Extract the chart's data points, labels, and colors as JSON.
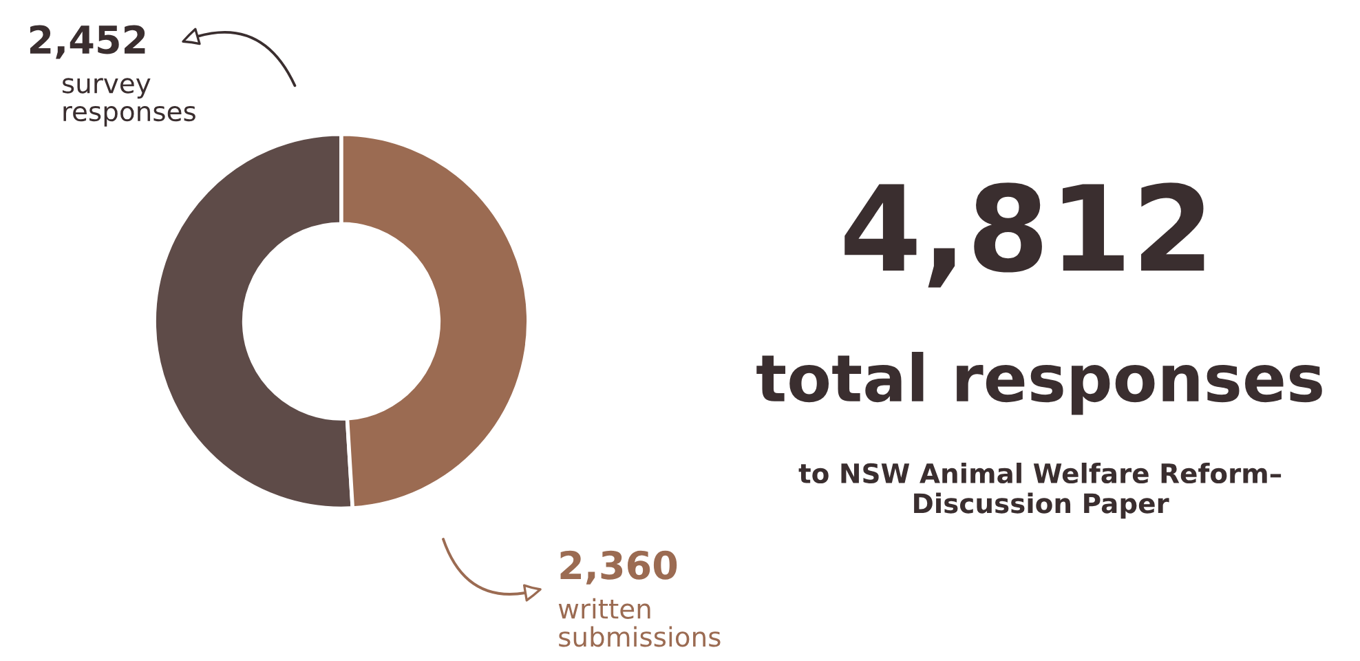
{
  "chart_data": {
    "type": "donut",
    "title": "4,812",
    "subtitle": "total responses",
    "annotations": [
      "to NSW Animal Welfare Reform–\nDiscussion Paper"
    ],
    "categories": [
      "survey responses",
      "written submissions"
    ],
    "values": [
      2452,
      2360
    ],
    "colors": [
      "#5e4b48",
      "#9b6b52"
    ],
    "value_labels": [
      "2,452",
      "2,360"
    ]
  }
}
